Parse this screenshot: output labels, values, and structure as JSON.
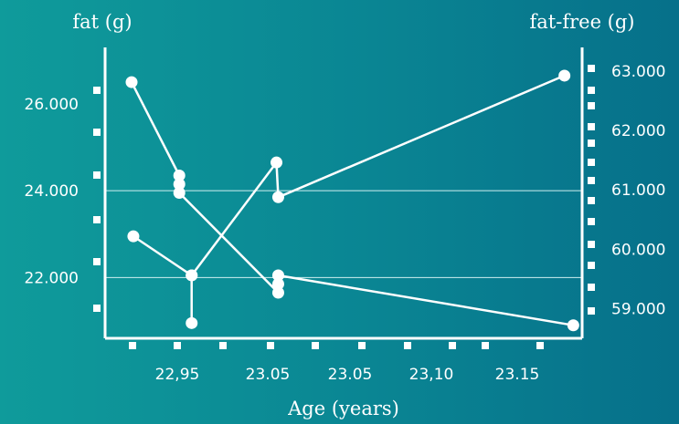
{
  "chart_data": {
    "type": "line",
    "y_left_label": "fat (g)",
    "y_right_label": "fat-free (g)",
    "xlabel": "Age (years)",
    "x_tick_labels": [
      "22,95",
      "23.05",
      "23.05",
      "23,10",
      "23.15"
    ],
    "y_left_ticks": [
      {
        "value": 26000,
        "label": "26.000"
      },
      {
        "value": 24000,
        "label": "24.000"
      },
      {
        "value": 22000,
        "label": "22.000"
      }
    ],
    "y_right_ticks": [
      {
        "value": 63000,
        "label": "63.000"
      },
      {
        "value": 62000,
        "label": "62.000"
      },
      {
        "value": 61000,
        "label": "61.000"
      },
      {
        "value": 60000,
        "label": "60.000"
      },
      {
        "value": 59000,
        "label": "59.000"
      }
    ],
    "y_left_range": [
      20600,
      27300
    ],
    "y_right_range": [
      58500,
      63400
    ],
    "x_range": [
      22.91,
      23.18
    ],
    "gridlines_left": [
      24000,
      22000
    ],
    "grid": true,
    "series": [
      {
        "axis": "left",
        "points": [
          {
            "x": 22.925,
            "y": 26500
          },
          {
            "x": 22.952,
            "y": 24350
          },
          {
            "x": 22.952,
            "y": 24150
          },
          {
            "x": 22.952,
            "y": 23950
          },
          {
            "x": 23.008,
            "y": 21650
          },
          {
            "x": 23.008,
            "y": 21850
          },
          {
            "x": 23.008,
            "y": 22050
          },
          {
            "x": 23.175,
            "y": 20900
          }
        ]
      },
      {
        "axis": "left",
        "points": [
          {
            "x": 22.926,
            "y": 22950
          },
          {
            "x": 22.959,
            "y": 22050
          },
          {
            "x": 22.959,
            "y": 20950
          },
          {
            "x": 22.959,
            "y": 22050
          },
          {
            "x": 23.007,
            "y": 24650
          },
          {
            "x": 23.008,
            "y": 23850
          },
          {
            "x": 23.17,
            "y": 26650
          }
        ]
      }
    ],
    "colors": {
      "line": "#ffffff",
      "marker": "#ffffff",
      "grid": "#cfeff0"
    }
  }
}
